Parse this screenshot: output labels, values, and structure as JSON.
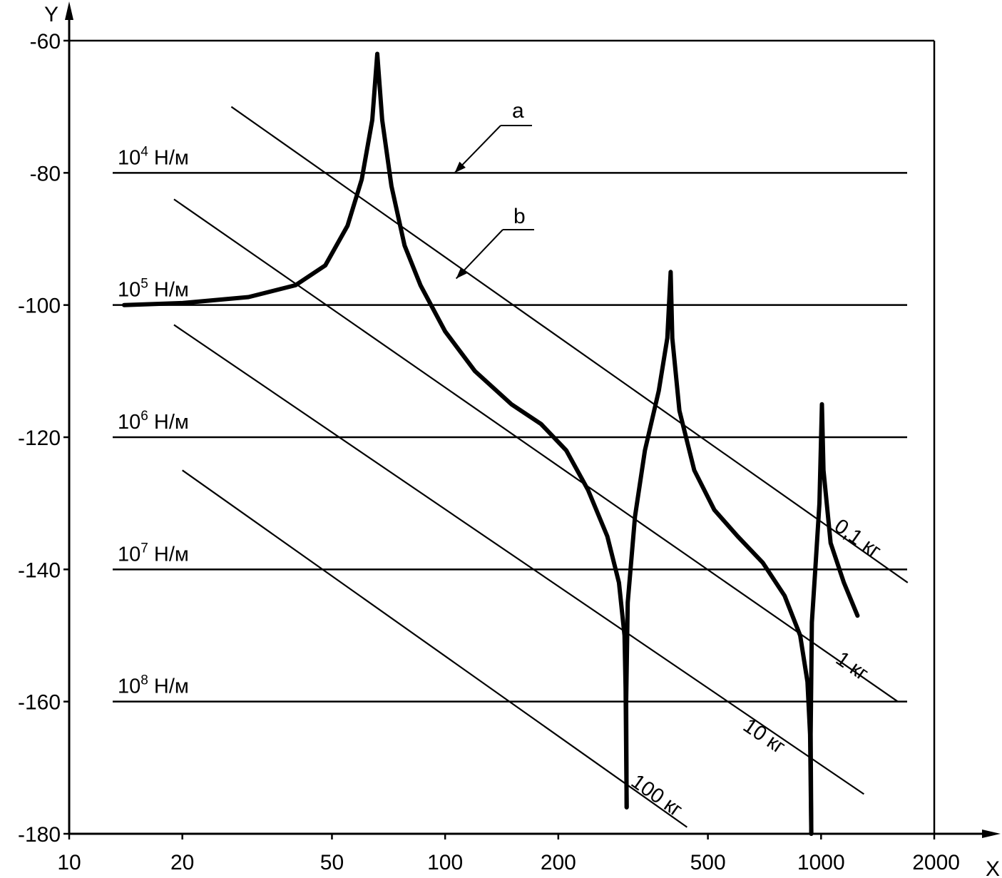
{
  "chart_data": {
    "type": "line",
    "title": "",
    "xlabel": "X",
    "ylabel": "Y",
    "x_scale": "log",
    "xlim": [
      10,
      2000
    ],
    "ylim": [
      -180,
      -60
    ],
    "x_ticks": [
      10,
      20,
      50,
      100,
      200,
      500,
      1000,
      2000
    ],
    "x_tick_labels": [
      "10",
      "20",
      "50",
      "100",
      "200",
      "500",
      "1000",
      "2000"
    ],
    "y_ticks": [
      -60,
      -80,
      -100,
      -120,
      -140,
      -160,
      -180
    ],
    "y_tick_labels": [
      "-60",
      "-80",
      "-100",
      "-120",
      "-140",
      "-160",
      "-180"
    ],
    "grid": false,
    "stiffness_lines": [
      {
        "label": "10",
        "exp": "4",
        "unit": "Н/м",
        "y": -80
      },
      {
        "label": "10",
        "exp": "5",
        "unit": "Н/м",
        "y": -100
      },
      {
        "label": "10",
        "exp": "6",
        "unit": "Н/м",
        "y": -120
      },
      {
        "label": "10",
        "exp": "7",
        "unit": "Н/м",
        "y": -140
      },
      {
        "label": "10",
        "exp": "8",
        "unit": "Н/м",
        "y": -160
      }
    ],
    "mass_lines": [
      {
        "label": "0,1 кг",
        "points": [
          [
            27,
            -70
          ],
          [
            1700,
            -142
          ]
        ]
      },
      {
        "label": "1 кг",
        "points": [
          [
            19,
            -84
          ],
          [
            1600,
            -160
          ]
        ]
      },
      {
        "label": "10 кг",
        "points": [
          [
            19,
            -103
          ],
          [
            1300,
            -174
          ]
        ]
      },
      {
        "label": "100 кг",
        "points": [
          [
            20,
            -125
          ],
          [
            440,
            -179
          ]
        ]
      }
    ],
    "annotations": [
      {
        "text": "a",
        "target": [
          106,
          -80
        ]
      },
      {
        "text": "b",
        "target": [
          107,
          -96
        ]
      }
    ],
    "series": [
      {
        "style": "thick",
        "points": [
          [
            14,
            -100
          ],
          [
            20,
            -99.7
          ],
          [
            30,
            -98.8
          ],
          [
            40,
            -97
          ],
          [
            48,
            -94
          ],
          [
            55,
            -88
          ],
          [
            60,
            -81
          ],
          [
            64,
            -72
          ],
          [
            66,
            -62
          ],
          [
            68,
            -72
          ],
          [
            72,
            -82
          ],
          [
            78,
            -91
          ],
          [
            86,
            -97
          ],
          [
            100,
            -104
          ],
          [
            120,
            -110
          ],
          [
            150,
            -115
          ],
          [
            180,
            -118
          ],
          [
            210,
            -122
          ],
          [
            240,
            -128
          ],
          [
            270,
            -135
          ],
          [
            290,
            -142
          ],
          [
            300,
            -150
          ],
          [
            302,
            -158
          ],
          [
            304,
            -176
          ]
        ]
      },
      {
        "style": "thick",
        "points": [
          [
            304,
            -176
          ],
          [
            303,
            -160
          ],
          [
            306,
            -145
          ],
          [
            320,
            -132
          ],
          [
            340,
            -122
          ],
          [
            370,
            -113
          ],
          [
            390,
            -105
          ],
          [
            398,
            -95
          ],
          [
            402,
            -105
          ],
          [
            420,
            -116
          ],
          [
            460,
            -125
          ],
          [
            520,
            -131
          ],
          [
            600,
            -135
          ],
          [
            700,
            -139
          ],
          [
            800,
            -144
          ],
          [
            880,
            -150
          ],
          [
            920,
            -157
          ],
          [
            935,
            -165
          ],
          [
            942,
            -180
          ]
        ]
      },
      {
        "style": "thick",
        "points": [
          [
            942,
            -180
          ],
          [
            938,
            -165
          ],
          [
            945,
            -148
          ],
          [
            965,
            -140
          ],
          [
            990,
            -130
          ],
          [
            1005,
            -115
          ],
          [
            1015,
            -125
          ],
          [
            1060,
            -136
          ],
          [
            1150,
            -142
          ],
          [
            1250,
            -147
          ]
        ]
      }
    ]
  }
}
